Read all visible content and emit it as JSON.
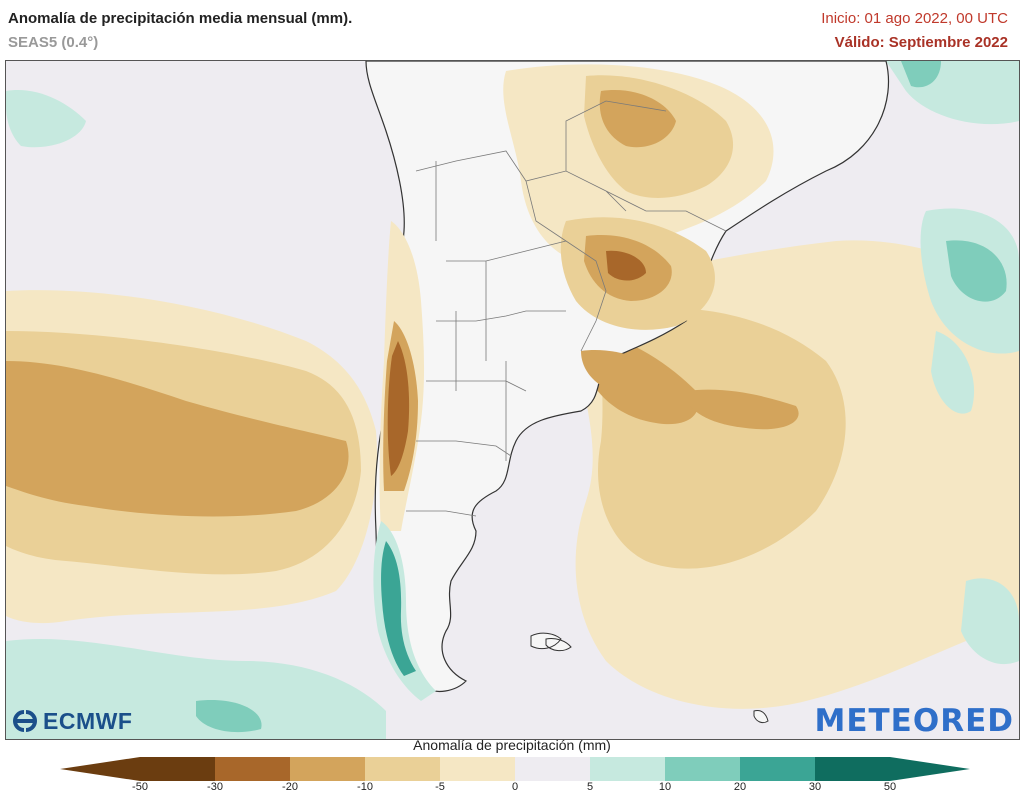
{
  "header": {
    "title": "Anomalía de precipitación media mensual (mm).",
    "subtitle": "SEAS5 (0.4°)",
    "init": "Inicio: 01 ago 2022, 00 UTC",
    "valid": "Válido: Septiembre 2022"
  },
  "logos": {
    "ecmwf": "ECMWF",
    "meteored": "METEORED"
  },
  "colorbar": {
    "title": "Anomalía de precipitación (mm)",
    "ticks": [
      "-50",
      "-30",
      "-20",
      "-10",
      "-5",
      "0",
      "5",
      "10",
      "20",
      "30",
      "50"
    ],
    "colors": [
      "#6b3d10",
      "#a8672a",
      "#d3a45c",
      "#ead097",
      "#f5e7c4",
      "#eeecf1",
      "#eeecf1",
      "#c6e9df",
      "#7fcdbb",
      "#3ba595",
      "#0f6d5f"
    ]
  },
  "palette": {
    "ocean": "#eeecf1",
    "land": "#f6f6f6",
    "dry_light": "#f5e7c4",
    "dry_mid": "#ead097",
    "dry_strong": "#d3a45c",
    "dry_very": "#a8672a",
    "wet_light": "#c6e9df",
    "wet_mid": "#7fcdbb",
    "wet_strong": "#3ba595"
  }
}
